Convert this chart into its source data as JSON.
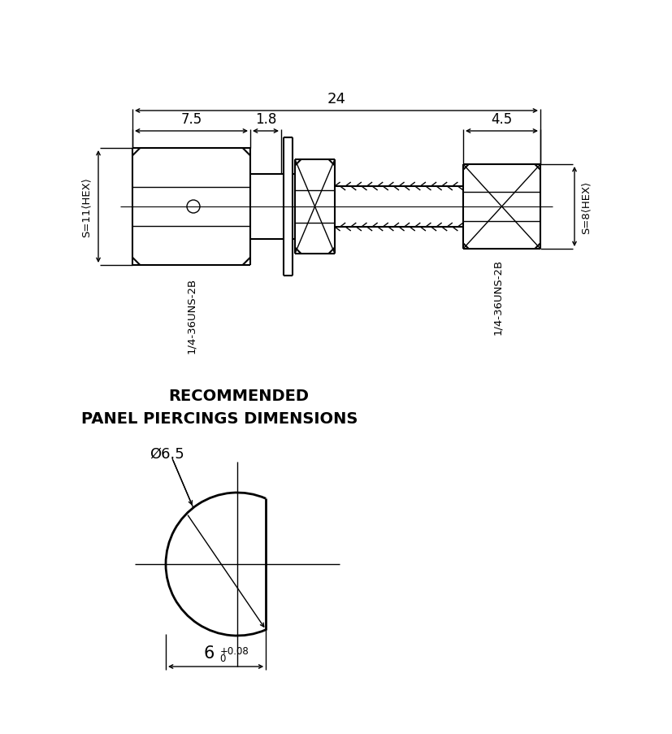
{
  "bg_color": "#ffffff",
  "line_color": "#000000",
  "fig_width": 8.28,
  "fig_height": 9.04,
  "dpi": 100,
  "top": {
    "label_24": "24",
    "label_75": "7.5",
    "label_18": "1.8",
    "label_45": "4.5",
    "label_S11": "S=11⟨HEX⟩",
    "label_S8": "S=8⟨HEX⟩",
    "label_thread_left": "1/4-36UNS-2B",
    "label_thread_right": "1/4-36UNS-2B"
  },
  "bottom": {
    "title_line1": "RECOMMENDED",
    "title_line2": "PANEL PIERCINGS DIMENSIONS",
    "label_diameter": "Ø6.5",
    "label_width": "6",
    "label_tolerance_top": "+0.08",
    "label_tolerance_bot": "0"
  }
}
